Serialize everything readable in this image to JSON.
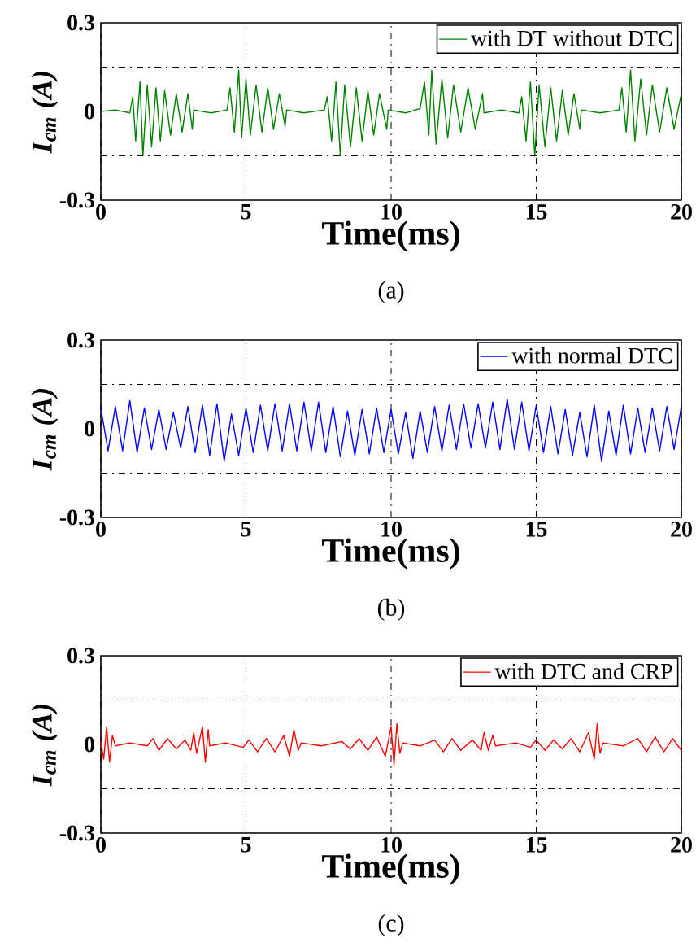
{
  "chart_data": [
    {
      "type": "line",
      "xlabel": "Time(ms)",
      "ylabel": "I$_{cm}$ (A)",
      "annotations": [
        "(a)"
      ],
      "xlim": [
        0,
        20
      ],
      "xticks": [
        0,
        5,
        10,
        15,
        20
      ],
      "ylim": [
        -0.3,
        0.3
      ],
      "yticks": [
        -0.3,
        0,
        0.3
      ],
      "grid": "x",
      "ref_lines": [
        {
          "axis": "y",
          "value": 0.15
        },
        {
          "axis": "y",
          "value": -0.15
        }
      ],
      "legend": "top right",
      "line_style": "solid",
      "marker": "none",
      "x": [
        0,
        0.5,
        1.0,
        1.1,
        1.2,
        1.35,
        1.45,
        1.6,
        1.75,
        1.9,
        2.05,
        2.2,
        2.4,
        2.6,
        2.8,
        3.0,
        3.15,
        3.2,
        3.8,
        4.35,
        4.45,
        4.6,
        4.75,
        4.85,
        5.0,
        5.15,
        5.35,
        5.55,
        5.75,
        5.95,
        6.15,
        6.35,
        6.4,
        7.0,
        7.7,
        7.8,
        7.95,
        8.1,
        8.25,
        8.4,
        8.6,
        8.8,
        9.0,
        9.2,
        9.4,
        9.6,
        9.85,
        9.9,
        10.5,
        11.0,
        11.15,
        11.3,
        11.4,
        11.55,
        11.75,
        11.95,
        12.15,
        12.4,
        12.65,
        12.9,
        13.15,
        13.2,
        13.8,
        14.4,
        14.5,
        14.65,
        14.8,
        14.95,
        15.1,
        15.3,
        15.5,
        15.7,
        15.9,
        16.1,
        16.3,
        16.5,
        16.55,
        17.2,
        17.85,
        17.95,
        18.1,
        18.25,
        18.4,
        18.6,
        18.8,
        19.0,
        19.25,
        19.5,
        19.75,
        20
      ],
      "series": [
        {
          "name": "with DT without DTC",
          "color": "#008000",
          "values": [
            0,
            0.005,
            -0.005,
            0.05,
            -0.1,
            0.1,
            -0.15,
            0.09,
            -0.12,
            0.08,
            -0.1,
            0.07,
            -0.08,
            0.06,
            -0.07,
            0.06,
            -0.06,
            0.005,
            -0.005,
            0.005,
            0.08,
            -0.07,
            0.14,
            -0.09,
            0.11,
            -0.08,
            0.09,
            -0.07,
            0.08,
            -0.06,
            0.06,
            -0.05,
            0.005,
            -0.005,
            0.005,
            0.05,
            -0.1,
            0.1,
            -0.15,
            0.09,
            -0.12,
            0.08,
            -0.1,
            0.07,
            -0.08,
            0.06,
            -0.06,
            0.005,
            -0.005,
            0.01,
            0.1,
            -0.08,
            0.14,
            -0.11,
            0.11,
            -0.09,
            0.09,
            -0.07,
            0.08,
            -0.06,
            0.06,
            -0.005,
            0.005,
            -0.005,
            0.05,
            -0.1,
            0.1,
            -0.15,
            0.09,
            -0.12,
            0.08,
            -0.1,
            0.07,
            -0.08,
            0.06,
            -0.06,
            0.005,
            -0.005,
            0.005,
            0.08,
            -0.07,
            0.14,
            -0.1,
            0.11,
            -0.08,
            0.09,
            -0.07,
            0.08,
            -0.06,
            0.06
          ]
        }
      ]
    },
    {
      "type": "line",
      "xlabel": "Time(ms)",
      "ylabel": "I$_{cm}$ (A)",
      "annotations": [
        "(b)"
      ],
      "xlim": [
        0,
        20
      ],
      "xticks": [
        0,
        5,
        10,
        15,
        20
      ],
      "ylim": [
        -0.3,
        0.3
      ],
      "yticks": [
        -0.3,
        0,
        0.3
      ],
      "grid": "x",
      "ref_lines": [
        {
          "axis": "y",
          "value": 0.15
        },
        {
          "axis": "y",
          "value": -0.15
        }
      ],
      "legend": "top right",
      "line_style": "solid",
      "marker": "none",
      "x": [
        0,
        0.25,
        0.5,
        0.75,
        1.0,
        1.25,
        1.5,
        1.75,
        2.0,
        2.25,
        2.5,
        2.75,
        3.0,
        3.25,
        3.5,
        3.75,
        4.0,
        4.25,
        4.5,
        4.75,
        5.0,
        5.25,
        5.5,
        5.75,
        6.0,
        6.25,
        6.5,
        6.75,
        7.0,
        7.25,
        7.5,
        7.75,
        8.0,
        8.25,
        8.5,
        8.75,
        9.0,
        9.25,
        9.5,
        9.75,
        10.0,
        10.25,
        10.5,
        10.75,
        11.0,
        11.25,
        11.5,
        11.75,
        12.0,
        12.25,
        12.5,
        12.75,
        13.0,
        13.25,
        13.5,
        13.75,
        14.0,
        14.25,
        14.5,
        14.75,
        15.0,
        15.25,
        15.5,
        15.75,
        16.0,
        16.25,
        16.5,
        16.75,
        17.0,
        17.25,
        17.5,
        17.75,
        18.0,
        18.25,
        18.5,
        18.75,
        19.0,
        19.25,
        19.5,
        19.75,
        20.0
      ],
      "series": [
        {
          "name": "with normal DTC",
          "color": "#0000ff",
          "values": [
            0.07,
            -0.075,
            0.075,
            -0.075,
            0.095,
            -0.08,
            0.07,
            -0.07,
            0.065,
            -0.07,
            0.055,
            -0.065,
            0.075,
            -0.08,
            0.08,
            -0.09,
            0.085,
            -0.11,
            0.05,
            -0.09,
            0.07,
            -0.08,
            0.08,
            -0.075,
            0.085,
            -0.075,
            0.085,
            -0.075,
            0.09,
            -0.075,
            0.09,
            -0.08,
            0.075,
            -0.095,
            0.06,
            -0.09,
            0.065,
            -0.085,
            0.07,
            -0.08,
            0.065,
            -0.085,
            0.055,
            -0.1,
            0.06,
            -0.08,
            0.075,
            -0.075,
            0.08,
            -0.07,
            0.085,
            -0.065,
            0.085,
            -0.065,
            0.09,
            -0.07,
            0.1,
            -0.07,
            0.09,
            -0.075,
            0.08,
            -0.08,
            0.075,
            -0.085,
            0.065,
            -0.09,
            0.055,
            -0.095,
            0.08,
            -0.11,
            0.06,
            -0.09,
            0.08,
            -0.085,
            0.07,
            -0.08,
            0.07,
            -0.075,
            0.075,
            -0.07,
            0.075
          ]
        }
      ]
    },
    {
      "type": "line",
      "xlabel": "Time(ms)",
      "ylabel": "I$_{cm}$ (A)",
      "annotations": [
        "(c)"
      ],
      "xlim": [
        0,
        20
      ],
      "xticks": [
        0,
        5,
        10,
        15,
        20
      ],
      "ylim": [
        -0.3,
        0.3
      ],
      "yticks": [
        -0.3,
        0,
        0.3
      ],
      "grid": "x",
      "ref_lines": [
        {
          "axis": "y",
          "value": 0.15
        },
        {
          "axis": "y",
          "value": -0.15
        }
      ],
      "legend": "top right",
      "line_style": "solid",
      "marker": "none",
      "x": [
        0,
        0.1,
        0.2,
        0.3,
        0.4,
        0.5,
        1.0,
        1.6,
        1.8,
        2.0,
        2.3,
        2.6,
        2.9,
        3.1,
        3.2,
        3.3,
        3.5,
        3.6,
        3.7,
        3.75,
        4.3,
        4.9,
        5.1,
        5.4,
        5.7,
        6.0,
        6.3,
        6.5,
        6.65,
        6.8,
        6.9,
        7.6,
        8.3,
        8.6,
        8.9,
        9.2,
        9.5,
        9.8,
        10.0,
        10.1,
        10.2,
        10.3,
        10.4,
        11.0,
        11.5,
        11.8,
        12.1,
        12.4,
        12.8,
        13.1,
        13.2,
        13.35,
        13.5,
        13.6,
        14.3,
        14.8,
        15.0,
        15.3,
        15.6,
        15.9,
        16.2,
        16.5,
        16.8,
        17.0,
        17.1,
        17.2,
        17.3,
        18.0,
        18.5,
        18.8,
        19.1,
        19.4,
        19.7,
        20
      ],
      "series": [
        {
          "name": "with DTC and CRP",
          "color": "#ff0000",
          "values": [
            0.01,
            -0.05,
            0.06,
            -0.06,
            0.03,
            -0.005,
            0.005,
            -0.005,
            0.02,
            -0.02,
            0.02,
            -0.015,
            0.015,
            -0.02,
            0.04,
            -0.03,
            0.06,
            -0.06,
            0.05,
            -0.005,
            0.005,
            -0.01,
            0.015,
            -0.025,
            0.02,
            -0.025,
            0.03,
            -0.04,
            0.05,
            -0.02,
            0.005,
            -0.005,
            0.01,
            -0.015,
            0.02,
            -0.02,
            0.025,
            -0.04,
            0.06,
            -0.07,
            0.07,
            -0.03,
            0.005,
            -0.005,
            0.015,
            -0.025,
            0.02,
            -0.02,
            0.015,
            -0.02,
            0.04,
            -0.02,
            0.03,
            -0.005,
            0.005,
            -0.01,
            0.015,
            -0.02,
            0.015,
            -0.015,
            0.02,
            -0.025,
            0.04,
            -0.05,
            0.07,
            -0.03,
            0.005,
            -0.005,
            0.02,
            -0.025,
            0.025,
            -0.025,
            0.02,
            -0.02
          ]
        }
      ]
    }
  ]
}
